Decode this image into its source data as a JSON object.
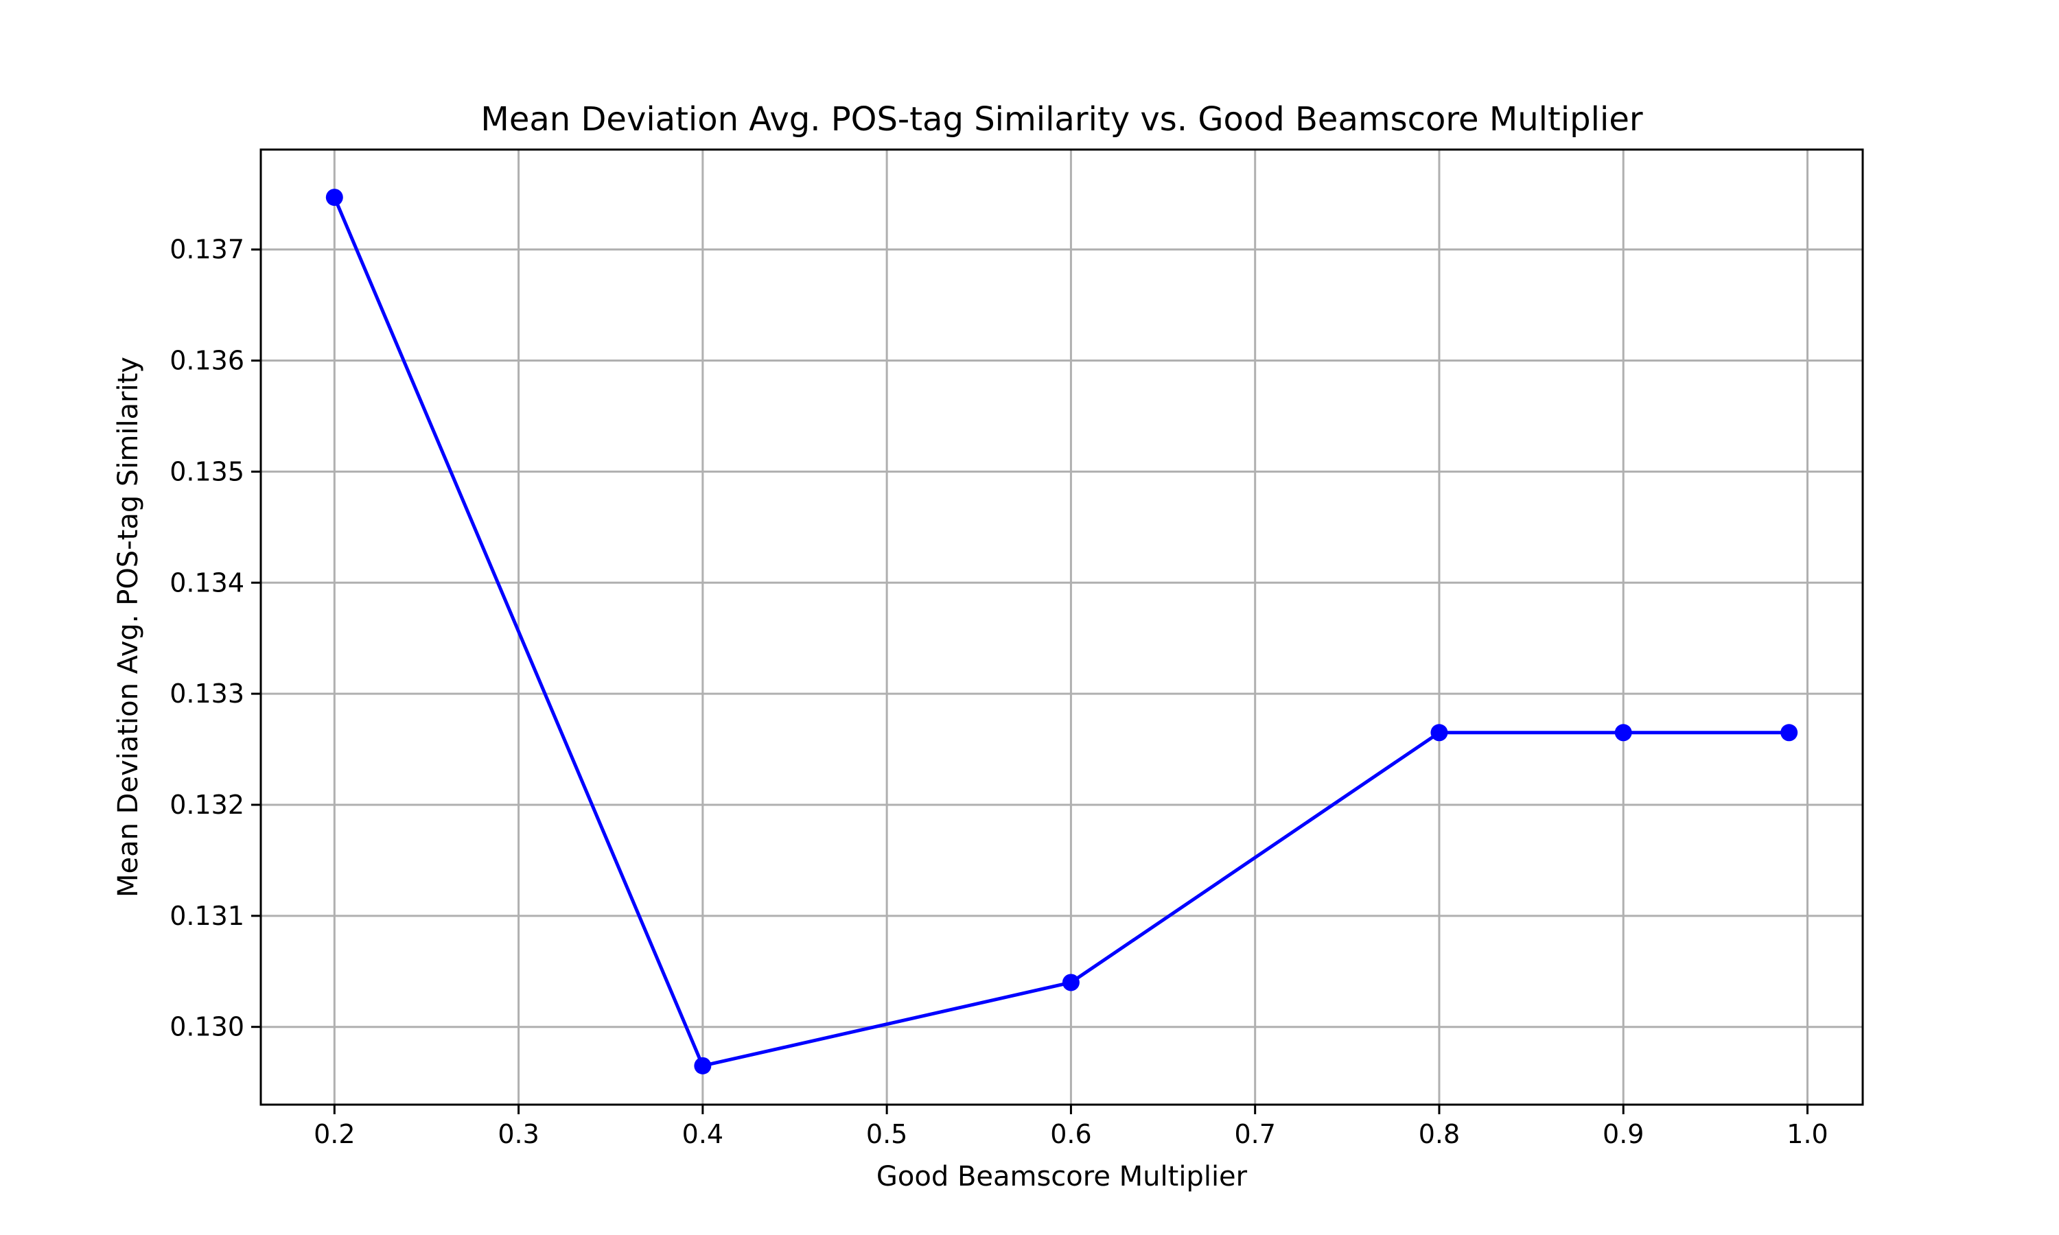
{
  "chart_data": {
    "type": "line",
    "title": "Mean Deviation Avg. POS-tag Similarity vs. Good Beamscore Multiplier",
    "xlabel": "Good Beamscore Multiplier",
    "ylabel": "Mean Deviation Avg. POS-tag Similarity",
    "xlim": [
      0.16,
      1.03
    ],
    "ylim": [
      0.1293,
      0.1379
    ],
    "x_ticks": [
      0.2,
      0.3,
      0.4,
      0.5,
      0.6,
      0.7,
      0.8,
      0.9,
      1.0
    ],
    "x_tick_labels": [
      "0.2",
      "0.3",
      "0.4",
      "0.5",
      "0.6",
      "0.7",
      "0.8",
      "0.9",
      "1.0"
    ],
    "y_ticks": [
      0.13,
      0.131,
      0.132,
      0.133,
      0.134,
      0.135,
      0.136,
      0.137
    ],
    "y_tick_labels": [
      "0.130",
      "0.131",
      "0.132",
      "0.133",
      "0.134",
      "0.135",
      "0.136",
      "0.137"
    ],
    "grid": true,
    "series": [
      {
        "color": "#0000ff",
        "marker": "circle",
        "x": [
          0.2,
          0.4,
          0.6,
          0.8,
          0.9,
          0.99
        ],
        "y": [
          0.13747,
          0.12965,
          0.1304,
          0.13265,
          0.13265,
          0.13265
        ]
      }
    ]
  }
}
